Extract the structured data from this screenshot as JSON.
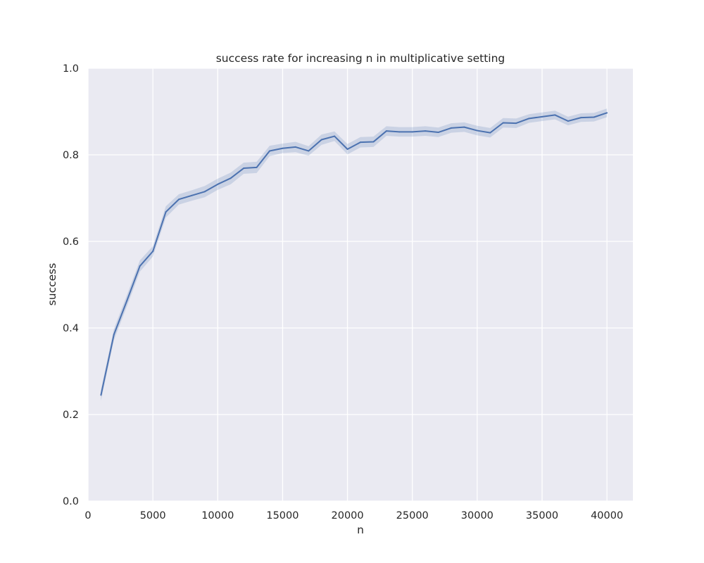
{
  "chart_data": {
    "type": "line",
    "title": "success rate for increasing n in multiplicative setting",
    "xlabel": "n",
    "ylabel": "success",
    "xlim": [
      0,
      42000
    ],
    "ylim": [
      0.0,
      1.0
    ],
    "x_ticks": [
      0,
      5000,
      10000,
      15000,
      20000,
      25000,
      30000,
      35000,
      40000
    ],
    "x_tick_labels": [
      "0",
      "5000",
      "10000",
      "15000",
      "20000",
      "25000",
      "30000",
      "35000",
      "40000"
    ],
    "y_ticks": [
      0.0,
      0.2,
      0.4,
      0.6,
      0.8,
      1.0
    ],
    "y_tick_labels": [
      "0.0",
      "0.2",
      "0.4",
      "0.6",
      "0.8",
      "1.0"
    ],
    "grid": true,
    "background": "#eaeaf2",
    "grid_color": "#ffffff",
    "line_color": "#4c72b0",
    "band_color": "#4c72b0",
    "series": [
      {
        "x": [
          1000,
          2000,
          3000,
          4000,
          5000,
          6000,
          7000,
          8000,
          9000,
          10000,
          11000,
          12000,
          13000,
          14000,
          15000,
          16000,
          17000,
          18000,
          19000,
          20000,
          21000,
          22000,
          23000,
          24000,
          25000,
          26000,
          27000,
          28000,
          29000,
          30000,
          31000,
          32000,
          33000,
          34000,
          35000,
          36000,
          37000,
          38000,
          39000,
          40000
        ],
        "y": [
          0.245,
          0.385,
          0.463,
          0.543,
          0.577,
          0.668,
          0.697,
          0.706,
          0.715,
          0.732,
          0.746,
          0.769,
          0.771,
          0.809,
          0.815,
          0.818,
          0.809,
          0.835,
          0.843,
          0.813,
          0.829,
          0.83,
          0.855,
          0.853,
          0.853,
          0.855,
          0.852,
          0.862,
          0.864,
          0.856,
          0.851,
          0.874,
          0.873,
          0.884,
          0.888,
          0.892,
          0.878,
          0.886,
          0.887,
          0.897
        ],
        "ci_low": [
          0.232,
          0.372,
          0.45,
          0.53,
          0.565,
          0.655,
          0.685,
          0.694,
          0.702,
          0.719,
          0.732,
          0.756,
          0.758,
          0.797,
          0.804,
          0.806,
          0.798,
          0.823,
          0.832,
          0.801,
          0.817,
          0.818,
          0.844,
          0.842,
          0.842,
          0.844,
          0.841,
          0.851,
          0.853,
          0.845,
          0.84,
          0.863,
          0.862,
          0.874,
          0.878,
          0.882,
          0.868,
          0.876,
          0.877,
          0.887
        ],
        "ci_high": [
          0.258,
          0.398,
          0.476,
          0.556,
          0.589,
          0.681,
          0.709,
          0.718,
          0.728,
          0.745,
          0.759,
          0.782,
          0.784,
          0.821,
          0.826,
          0.83,
          0.82,
          0.847,
          0.854,
          0.825,
          0.841,
          0.842,
          0.866,
          0.864,
          0.864,
          0.866,
          0.863,
          0.873,
          0.875,
          0.867,
          0.862,
          0.885,
          0.884,
          0.894,
          0.898,
          0.902,
          0.888,
          0.896,
          0.897,
          0.907
        ]
      }
    ]
  }
}
